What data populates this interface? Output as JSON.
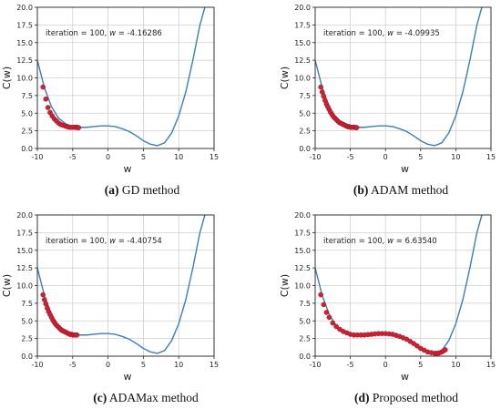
{
  "chart_data": [
    {
      "type": "line",
      "subtitle_tag": "(a)",
      "subtitle_text": "GD method",
      "xlabel": "w",
      "ylabel": "C(w)",
      "xlim": [
        -10,
        15
      ],
      "ylim": [
        0,
        20
      ],
      "xticks": [
        -10,
        -5,
        0,
        5,
        10,
        15
      ],
      "yticks": [
        0.0,
        2.5,
        5.0,
        7.5,
        10.0,
        12.5,
        15.0,
        17.5,
        20.0
      ],
      "grid": true,
      "annotation": {
        "prefix": "iteration = 100, ",
        "var": "w",
        "suffix": " = -4.16286"
      },
      "curve": {
        "x": [
          -10,
          -9,
          -8,
          -7,
          -6,
          -5,
          -4,
          -3,
          -2,
          -1,
          0,
          1,
          2,
          3,
          4,
          5,
          6,
          7,
          8,
          9,
          10,
          11,
          12,
          13,
          13.7
        ],
        "y": [
          12.5,
          8.6,
          5.9,
          4.3,
          3.5,
          3.1,
          3.0,
          3.0,
          3.1,
          3.2,
          3.2,
          3.1,
          2.8,
          2.4,
          1.8,
          1.1,
          0.6,
          0.4,
          0.8,
          2.2,
          4.6,
          8.0,
          12.5,
          17.5,
          20.0
        ]
      },
      "points": {
        "x": [
          -9.2,
          -8.8,
          -8.5,
          -8.2,
          -7.9,
          -7.6,
          -7.3,
          -7.0,
          -6.7,
          -6.4,
          -6.1,
          -5.8,
          -5.5,
          -5.2,
          -4.9,
          -4.6,
          -4.4,
          -4.25,
          -4.16
        ],
        "y": [
          8.7,
          7.0,
          5.8,
          5.1,
          4.6,
          4.2,
          3.9,
          3.6,
          3.4,
          3.3,
          3.2,
          3.1,
          3.0,
          3.0,
          3.0,
          3.0,
          3.0,
          2.95,
          2.95
        ]
      }
    },
    {
      "type": "line",
      "subtitle_tag": "(b)",
      "subtitle_text": "ADAM method",
      "xlabel": "w",
      "ylabel": "C(w)",
      "xlim": [
        -10,
        15
      ],
      "ylim": [
        0,
        20
      ],
      "xticks": [
        -10,
        -5,
        0,
        5,
        10,
        15
      ],
      "yticks": [
        0.0,
        2.5,
        5.0,
        7.5,
        10.0,
        12.5,
        15.0,
        17.5,
        20.0
      ],
      "grid": true,
      "annotation": {
        "prefix": "iteration = 100, ",
        "var": "w",
        "suffix": " = -4.09935"
      },
      "curve": {
        "x": [
          -10,
          -9,
          -8,
          -7,
          -6,
          -5,
          -4,
          -3,
          -2,
          -1,
          0,
          1,
          2,
          3,
          4,
          5,
          6,
          7,
          8,
          9,
          10,
          11,
          12,
          13,
          13.7
        ],
        "y": [
          12.5,
          8.6,
          5.9,
          4.3,
          3.5,
          3.1,
          3.0,
          3.0,
          3.1,
          3.2,
          3.2,
          3.1,
          2.8,
          2.4,
          1.8,
          1.1,
          0.6,
          0.4,
          0.8,
          2.2,
          4.6,
          8.0,
          12.5,
          17.5,
          20.0
        ]
      },
      "points": {
        "x": [
          -9.2,
          -9.0,
          -8.8,
          -8.6,
          -8.4,
          -8.2,
          -8.0,
          -7.8,
          -7.6,
          -7.4,
          -7.2,
          -7.0,
          -6.8,
          -6.6,
          -6.4,
          -6.2,
          -6.0,
          -5.8,
          -5.6,
          -5.4,
          -5.2,
          -5.0,
          -4.8,
          -4.6,
          -4.4,
          -4.2,
          -4.1
        ],
        "y": [
          8.7,
          8.0,
          7.4,
          6.8,
          6.3,
          5.9,
          5.5,
          5.1,
          4.8,
          4.5,
          4.3,
          4.1,
          3.9,
          3.7,
          3.6,
          3.5,
          3.4,
          3.3,
          3.2,
          3.1,
          3.1,
          3.0,
          3.0,
          3.0,
          3.0,
          2.95,
          2.95
        ]
      }
    },
    {
      "type": "line",
      "subtitle_tag": "(c)",
      "subtitle_text": "ADAMax method",
      "xlabel": "w",
      "ylabel": "C(w)",
      "xlim": [
        -10,
        15
      ],
      "ylim": [
        0,
        20
      ],
      "xticks": [
        -10,
        -5,
        0,
        5,
        10,
        15
      ],
      "yticks": [
        0.0,
        2.5,
        5.0,
        7.5,
        10.0,
        12.5,
        15.0,
        17.5,
        20.0
      ],
      "grid": true,
      "annotation": {
        "prefix": "iteration = 100, ",
        "var": "w",
        "suffix": " = -4.40754"
      },
      "curve": {
        "x": [
          -10,
          -9,
          -8,
          -7,
          -6,
          -5,
          -4,
          -3,
          -2,
          -1,
          0,
          1,
          2,
          3,
          4,
          5,
          6,
          7,
          8,
          9,
          10,
          11,
          12,
          13,
          13.7
        ],
        "y": [
          12.5,
          8.6,
          5.9,
          4.3,
          3.5,
          3.1,
          3.0,
          3.0,
          3.1,
          3.2,
          3.2,
          3.1,
          2.8,
          2.4,
          1.8,
          1.1,
          0.6,
          0.4,
          0.8,
          2.2,
          4.6,
          8.0,
          12.5,
          17.5,
          20.0
        ]
      },
      "points": {
        "x": [
          -9.2,
          -9.0,
          -8.8,
          -8.6,
          -8.4,
          -8.2,
          -8.0,
          -7.8,
          -7.6,
          -7.4,
          -7.2,
          -7.0,
          -6.8,
          -6.6,
          -6.4,
          -6.2,
          -6.0,
          -5.8,
          -5.6,
          -5.4,
          -5.2,
          -5.0,
          -4.8,
          -4.6,
          -4.4
        ],
        "y": [
          8.7,
          8.0,
          7.4,
          6.8,
          6.3,
          5.9,
          5.5,
          5.1,
          4.8,
          4.5,
          4.3,
          4.1,
          3.9,
          3.7,
          3.6,
          3.5,
          3.4,
          3.3,
          3.2,
          3.1,
          3.1,
          3.0,
          3.0,
          3.0,
          3.0
        ]
      }
    },
    {
      "type": "line",
      "subtitle_tag": "(d)",
      "subtitle_text": "Proposed method",
      "xlabel": "w",
      "ylabel": "C(w)",
      "xlim": [
        -10,
        15
      ],
      "ylim": [
        0,
        20
      ],
      "xticks": [
        -10,
        -5,
        0,
        5,
        10,
        15
      ],
      "yticks": [
        0.0,
        2.5,
        5.0,
        7.5,
        10.0,
        12.5,
        15.0,
        17.5,
        20.0
      ],
      "grid": true,
      "annotation": {
        "prefix": "iteration = 100, ",
        "var": "w",
        "suffix": " = 6.63540"
      },
      "curve": {
        "x": [
          -10,
          -9,
          -8,
          -7,
          -6,
          -5,
          -4,
          -3,
          -2,
          -1,
          0,
          1,
          2,
          3,
          4,
          5,
          6,
          7,
          8,
          9,
          10,
          11,
          12,
          13,
          13.7
        ],
        "y": [
          12.5,
          8.6,
          5.9,
          4.3,
          3.5,
          3.1,
          3.0,
          3.0,
          3.1,
          3.2,
          3.2,
          3.1,
          2.8,
          2.4,
          1.8,
          1.1,
          0.6,
          0.4,
          0.8,
          2.2,
          4.6,
          8.0,
          12.5,
          17.5,
          20.0
        ]
      },
      "points": {
        "x": [
          -9.2,
          -8.8,
          -8.4,
          -8.0,
          -7.5,
          -7.0,
          -6.5,
          -6.0,
          -5.5,
          -5.0,
          -4.5,
          -4.0,
          -3.5,
          -3.0,
          -2.5,
          -2.0,
          -1.5,
          -1.0,
          -0.5,
          0.0,
          0.5,
          1.0,
          1.5,
          2.0,
          2.5,
          3.0,
          3.5,
          4.0,
          4.5,
          5.0,
          5.5,
          6.0,
          6.5,
          7.0,
          7.3,
          7.6,
          7.9,
          8.2,
          8.5
        ],
        "y": [
          8.7,
          7.3,
          6.2,
          5.5,
          4.7,
          4.2,
          3.8,
          3.5,
          3.3,
          3.1,
          3.0,
          3.0,
          3.0,
          3.0,
          3.05,
          3.1,
          3.15,
          3.2,
          3.2,
          3.2,
          3.15,
          3.1,
          2.95,
          2.8,
          2.6,
          2.4,
          2.1,
          1.8,
          1.45,
          1.1,
          0.85,
          0.6,
          0.5,
          0.4,
          0.4,
          0.45,
          0.55,
          0.7,
          0.9
        ]
      }
    }
  ],
  "colors": {
    "curve": "#3a7fb5",
    "points": "#cc2233",
    "grid": "#cfcfcf",
    "axis": "#222222"
  }
}
